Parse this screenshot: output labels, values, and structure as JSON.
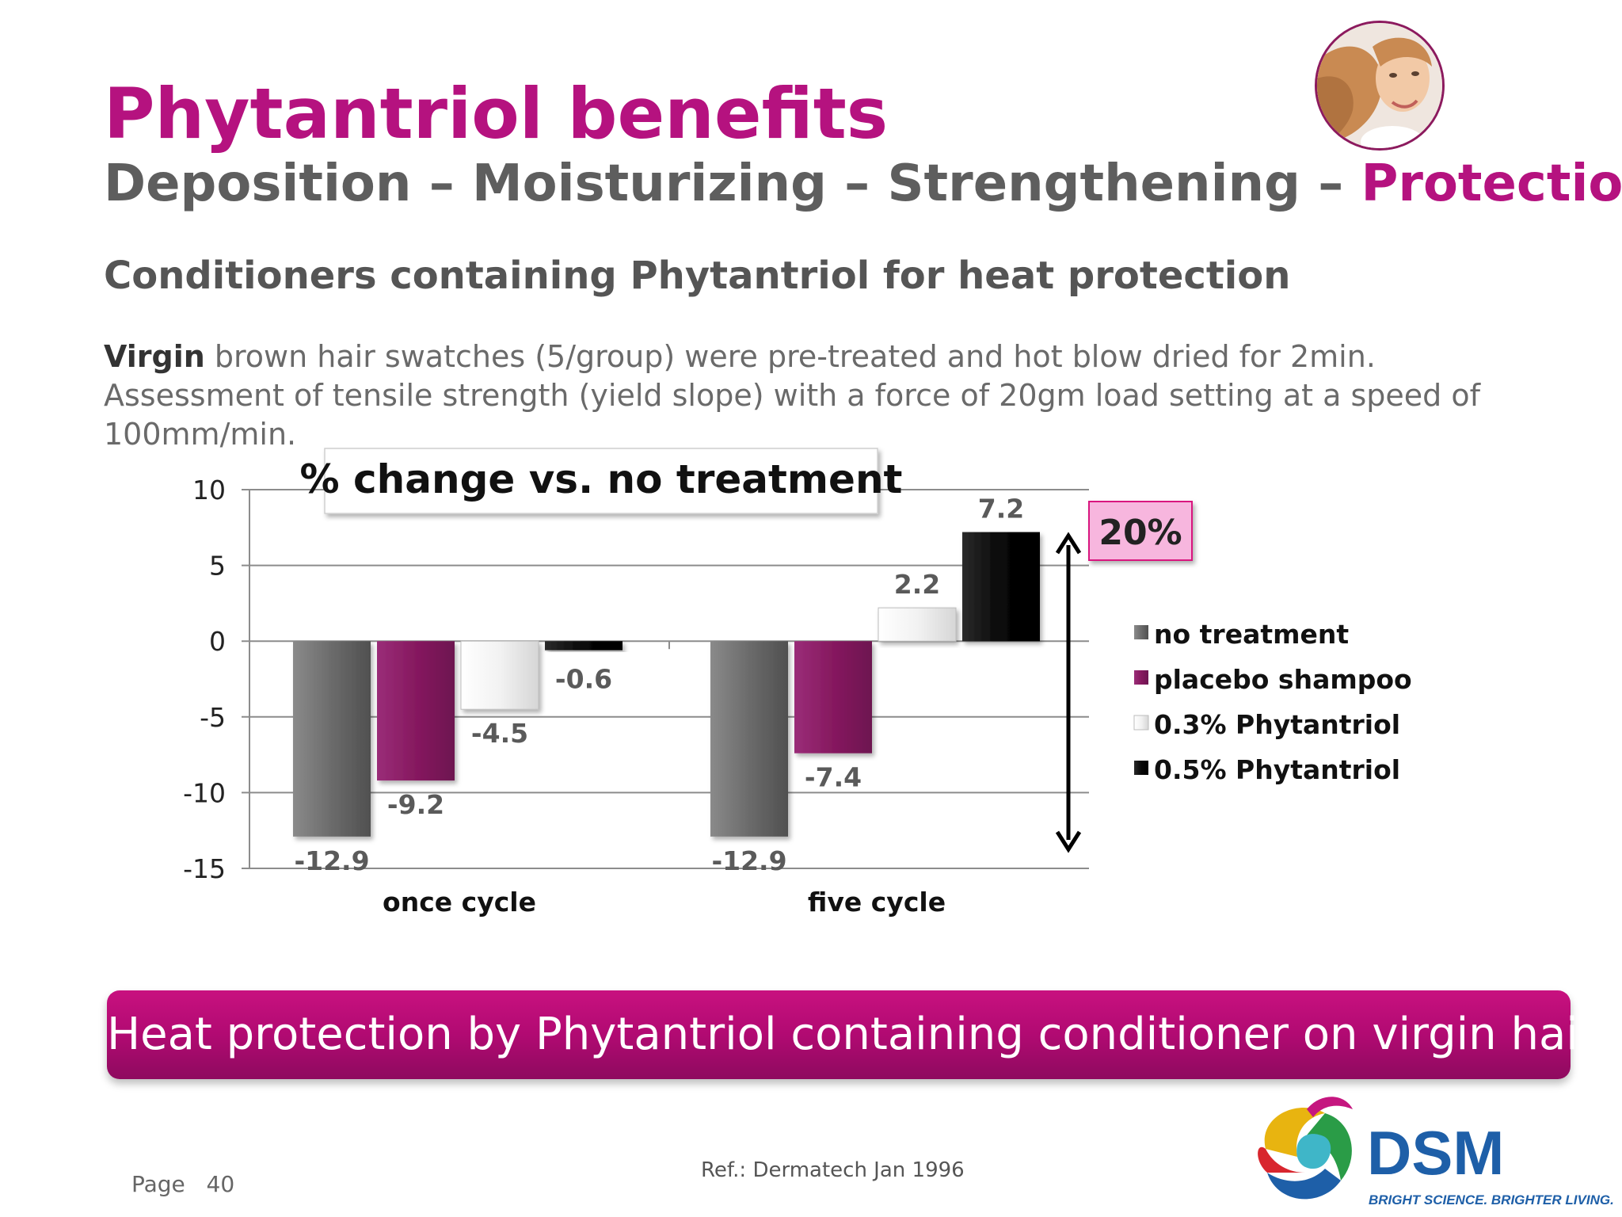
{
  "header": {
    "title": "Phytantriol benefits",
    "subtitle_main": "Deposition – Moisturizing – Strengthening – ",
    "subtitle_accent": "Protection"
  },
  "section": {
    "heading": "Conditioners containing Phytantriol for heat protection",
    "description_bold": "Virgin",
    "description_rest": " brown hair swatches (5/group) were pre-treated and hot blow dried for 2min. Assessment of tensile strength (yield slope) with a force of 20gm load setting at a speed of 100mm/min."
  },
  "chart_data": {
    "type": "bar",
    "title": "% change vs. no treatment",
    "categories": [
      "once cycle",
      "five cycle"
    ],
    "series": [
      {
        "name": "no treatment",
        "values": [
          -12.9,
          -12.9
        ],
        "color": "#6b6b6b"
      },
      {
        "name": "placebo shampoo",
        "values": [
          -9.2,
          -7.4
        ],
        "color": "#8a1f68"
      },
      {
        "name": "0.3% Phytantriol",
        "values": [
          -4.5,
          2.2
        ],
        "color": "#ebebeb"
      },
      {
        "name": "0.5% Phytantriol",
        "values": [
          -0.6,
          7.2
        ],
        "color": "#0d0d0d"
      }
    ],
    "data_labels": [
      [
        "-12.9",
        "-12.9"
      ],
      [
        "-9.2",
        "-7.4"
      ],
      [
        "-4.5",
        "2.2"
      ],
      [
        "-0.6",
        "7.2"
      ]
    ],
    "ylim": [
      -15,
      10
    ],
    "yticks": [
      10,
      5,
      0,
      -5,
      -10,
      -15
    ],
    "grid": true,
    "legend_position": "right",
    "annotation": "20%"
  },
  "banner": {
    "text": "Heat protection by Phytantriol containing conditioner on virgin hair"
  },
  "footer": {
    "page_label": "Page",
    "page_number": "40",
    "reference": "Ref.: Dermatech Jan 1996",
    "logo_text": "DSM",
    "logo_tagline": "BRIGHT SCIENCE. BRIGHTER LIVING."
  },
  "colors": {
    "brand_magenta": "#b5127f",
    "text_gray": "#5e5e5e",
    "callout_pink": "#f7b6de"
  }
}
